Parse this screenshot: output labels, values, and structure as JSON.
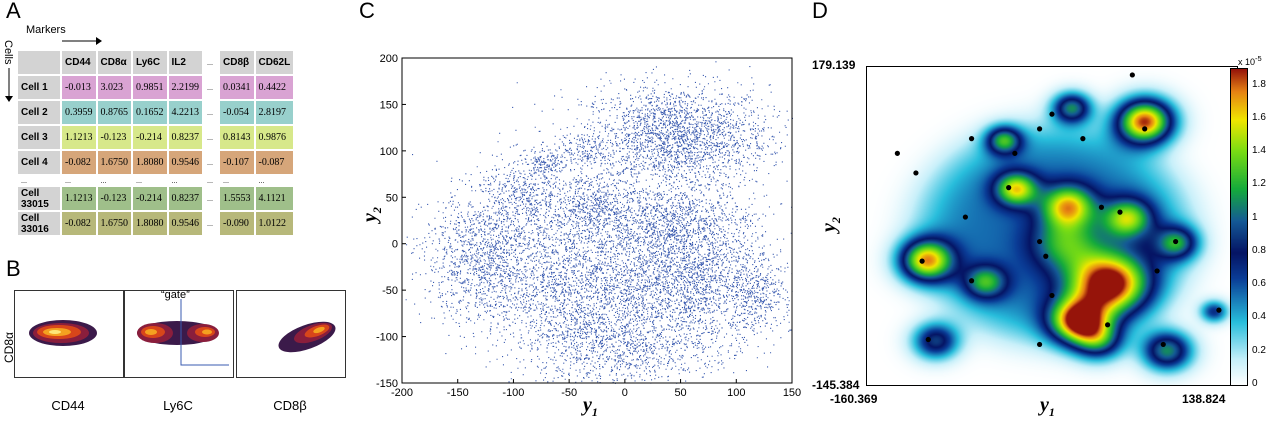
{
  "panel_a": {
    "letter": "A",
    "markers_label": "Markers",
    "cells_label": "Cells",
    "columns": [
      "CD44",
      "CD8α",
      "Ly6C",
      "IL2",
      "CD8β",
      "CD62L"
    ],
    "rows": [
      {
        "label": "Cell 1",
        "color": "#d9a3d3",
        "values": [
          "-0.013",
          "3.023",
          "0.9851",
          "2.2199",
          "0.0341",
          "0.4422"
        ]
      },
      {
        "label": "Cell 2",
        "color": "#98d0cc",
        "values": [
          "0.3959",
          "0.8765",
          "0.1652",
          "4.2213",
          "-0.054",
          "2.8197"
        ]
      },
      {
        "label": "Cell 3",
        "color": "#d7e88a",
        "values": [
          "1.1213",
          "-0.123",
          "-0.214",
          "0.8237",
          "0.8143",
          "0.9876"
        ]
      },
      {
        "label": "Cell 4",
        "color": "#d6a67a",
        "values": [
          "-0.082",
          "1.6750",
          "1.8080",
          "0.9546",
          "-0.107",
          "-0.087"
        ]
      },
      {
        "label": "Cell 33015",
        "color": "#9fbf8a",
        "values": [
          "1.1213",
          "-0.123",
          "-0.214",
          "0.8237",
          "1.5553",
          "4.1121"
        ]
      },
      {
        "label": "Cell 33016",
        "color": "#b7b87a",
        "values": [
          "-0.082",
          "1.6750",
          "1.8080",
          "0.9546",
          "-0.090",
          "1.0122"
        ]
      }
    ],
    "ellipsis": "..."
  },
  "panel_b": {
    "letter": "B",
    "ylabel": "CD8α",
    "gate_label": "“gate”",
    "xlabels": [
      "CD44",
      "Ly6C",
      "CD8β"
    ]
  },
  "panel_c": {
    "letter": "C",
    "xlabel": "y",
    "xlabel_sub": "1",
    "ylabel": "y",
    "ylabel_sub": "2",
    "point_color": "#3a5bb0"
  },
  "panel_d": {
    "letter": "D",
    "xlabel": "y",
    "xlabel_sub": "1",
    "ylabel": "y",
    "ylabel_sub": "2",
    "y_top": "179.139",
    "y_bottom": "-145.384",
    "x_left": "-160.369",
    "x_right": "138.824",
    "colorbar_exponent": "x 10",
    "colorbar_exponent_power": "-5",
    "colorbar_ticks": [
      "1.8",
      "1.6",
      "1.4",
      "1.2",
      "1",
      "0.8",
      "0.6",
      "0.4",
      "0.2",
      "0"
    ]
  },
  "chart_data": [
    {
      "type": "scatter",
      "title": "",
      "xlabel": "y1",
      "ylabel": "y2",
      "xlim": [
        -200,
        150
      ],
      "ylim": [
        -150,
        200
      ],
      "xticks": [
        "-200",
        "-150",
        "-100",
        "-50",
        "0",
        "50",
        "100",
        "150"
      ],
      "yticks": [
        "-150",
        "-100",
        "-50",
        "0",
        "50",
        "100",
        "150",
        "200"
      ],
      "clusters": [
        {
          "cx": 45,
          "cy": 115,
          "sx": 42,
          "sy": 28,
          "n": 2300
        },
        {
          "cx": -35,
          "cy": 100,
          "sx": 10,
          "sy": 8,
          "n": 120
        },
        {
          "cx": -70,
          "cy": 90,
          "sx": 10,
          "sy": 8,
          "n": 150
        },
        {
          "cx": -90,
          "cy": 50,
          "sx": 20,
          "sy": 22,
          "n": 500
        },
        {
          "cx": -30,
          "cy": 40,
          "sx": 18,
          "sy": 20,
          "n": 500
        },
        {
          "cx": 40,
          "cy": 25,
          "sx": 35,
          "sy": 20,
          "n": 900
        },
        {
          "cx": -125,
          "cy": -15,
          "sx": 28,
          "sy": 35,
          "n": 1300
        },
        {
          "cx": -45,
          "cy": -50,
          "sx": 35,
          "sy": 45,
          "n": 1900
        },
        {
          "cx": 55,
          "cy": -40,
          "sx": 40,
          "sy": 38,
          "n": 2400
        },
        {
          "cx": 120,
          "cy": -55,
          "sx": 12,
          "sy": 18,
          "n": 250
        },
        {
          "cx": 0,
          "cy": -115,
          "sx": 40,
          "sy": 18,
          "n": 600
        }
      ]
    },
    {
      "type": "heatmap",
      "title": "",
      "xlabel": "y1",
      "ylabel": "y2",
      "xlim": [
        -160.369,
        138.824
      ],
      "ylim": [
        -145.384,
        179.139
      ],
      "colorbar_range": [
        0,
        1.9e-05
      ],
      "peaks": [
        {
          "x": 64,
          "y": 124,
          "h": 1.85e-05,
          "s": 16
        },
        {
          "x": -113,
          "y": -18,
          "h": 1.5e-05,
          "s": 15
        },
        {
          "x": 35,
          "y": -42,
          "h": 1.6e-05,
          "s": 22
        },
        {
          "x": 10,
          "y": -80,
          "h": 1.55e-05,
          "s": 16
        },
        {
          "x": 2,
          "y": 38,
          "h": 1.1e-05,
          "s": 15
        },
        {
          "x": -40,
          "y": 55,
          "h": 1.1e-05,
          "s": 12
        },
        {
          "x": 5,
          "y": 138,
          "h": 1.05e-05,
          "s": 11
        },
        {
          "x": 27,
          "y": -100,
          "h": 8.5e-06,
          "s": 14
        },
        {
          "x": -50,
          "y": 105,
          "h": 1e-05,
          "s": 10
        },
        {
          "x": 50,
          "y": 25,
          "h": 1e-05,
          "s": 14
        },
        {
          "x": 82,
          "y": -110,
          "h": 1.1e-05,
          "s": 14
        },
        {
          "x": -105,
          "y": -100,
          "h": 9e-06,
          "s": 13
        },
        {
          "x": -65,
          "y": -40,
          "h": 8e-06,
          "s": 12
        },
        {
          "x": 120,
          "y": -70,
          "h": 7e-06,
          "s": 8
        },
        {
          "x": 90,
          "y": 0,
          "h": 9e-06,
          "s": 12
        },
        {
          "x": 0,
          "y": 0,
          "h": 7e-06,
          "s": 20
        }
      ],
      "centers": [
        [
          55,
          170
        ],
        [
          65,
          115
        ],
        [
          -10,
          130
        ],
        [
          -20,
          115
        ],
        [
          15,
          105
        ],
        [
          -75,
          105
        ],
        [
          -135,
          90
        ],
        [
          -120,
          70
        ],
        [
          -40,
          90
        ],
        [
          -45,
          55
        ],
        [
          30,
          35
        ],
        [
          45,
          30
        ],
        [
          -80,
          25
        ],
        [
          -20,
          0
        ],
        [
          -15,
          -15
        ],
        [
          90,
          0
        ],
        [
          -115,
          -20
        ],
        [
          -75,
          -40
        ],
        [
          75,
          -30
        ],
        [
          -10,
          -55
        ],
        [
          -110,
          -100
        ],
        [
          35,
          -85
        ],
        [
          -20,
          -105
        ],
        [
          80,
          -105
        ],
        [
          125,
          -70
        ]
      ]
    }
  ]
}
